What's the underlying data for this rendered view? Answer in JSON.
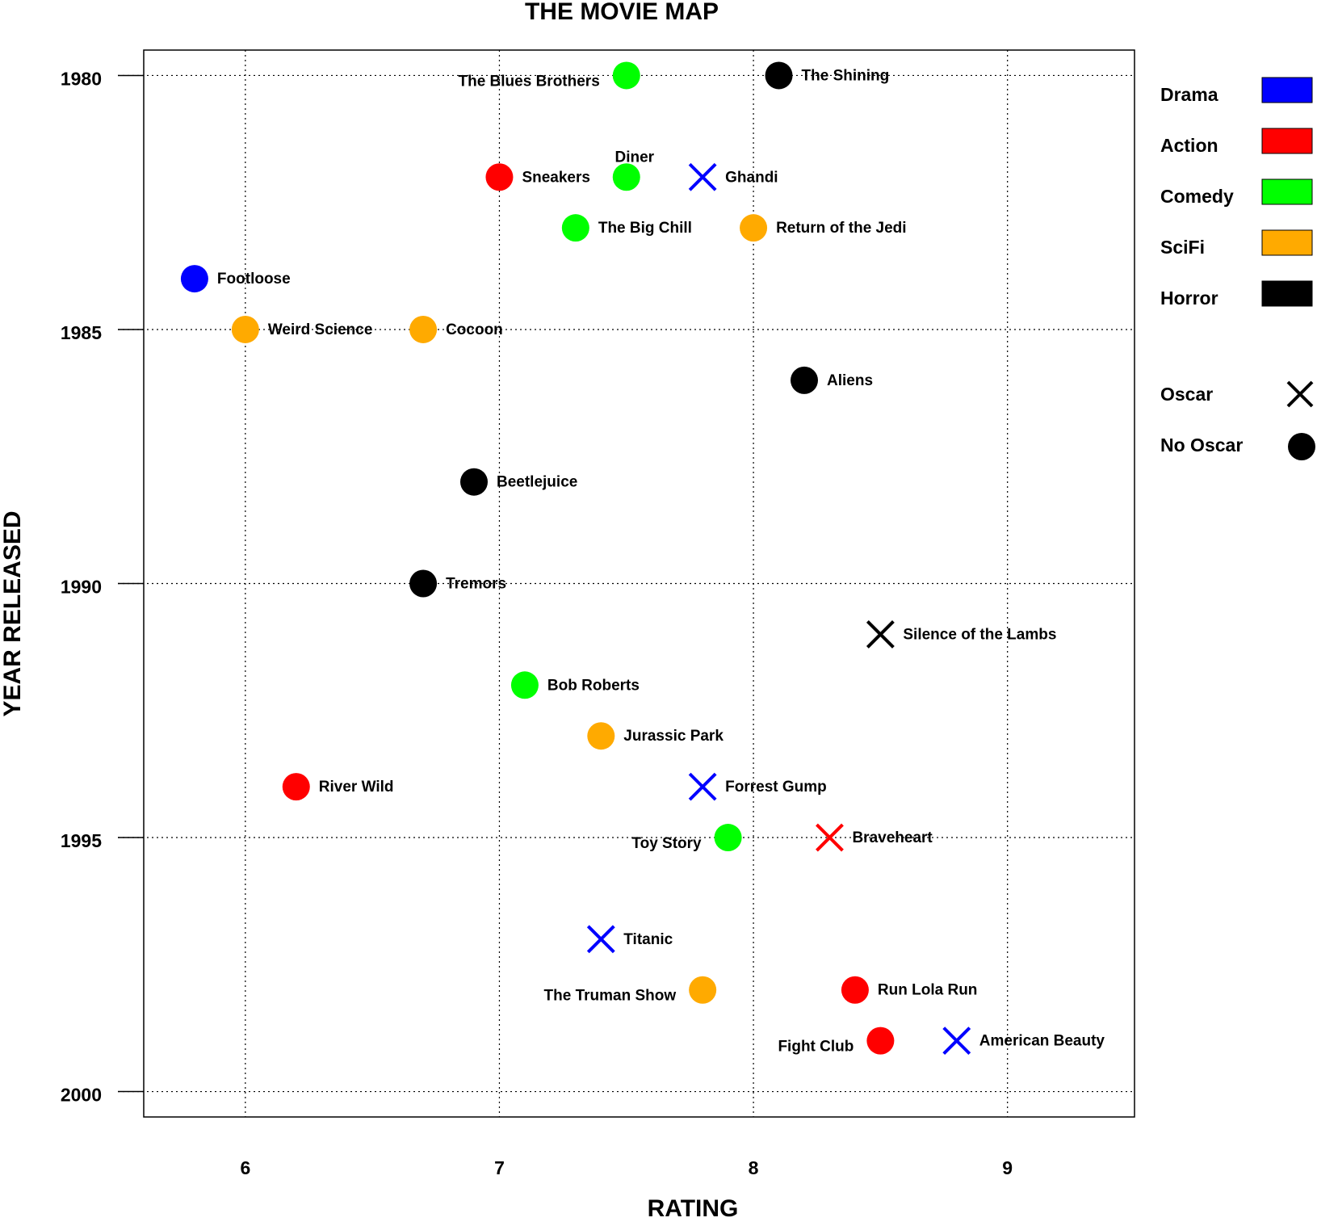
{
  "chart_data": {
    "type": "scatter",
    "title": "THE MOVIE MAP",
    "xlabel": "RATING",
    "ylabel": "YEAR RELEASED",
    "xlim": [
      5.6,
      9.5
    ],
    "ylim": [
      2000.5,
      1979.5
    ],
    "y_axis_inverted": true,
    "xticks": [
      6,
      7,
      8,
      9
    ],
    "xtick_labels": [
      "6",
      "7",
      "8",
      "9"
    ],
    "yticks": [
      1980,
      1985,
      1990,
      1995,
      2000
    ],
    "ytick_labels": [
      "1980",
      "1985",
      "1990",
      "1995",
      "2000"
    ],
    "grid": "dotted, at major ticks",
    "legend_position": "right, outside plot",
    "genres": [
      {
        "name": "Drama",
        "color": "#0000ff"
      },
      {
        "name": "Action",
        "color": "#ff0000"
      },
      {
        "name": "Comedy",
        "color": "#00ff00"
      },
      {
        "name": "SciFi",
        "color": "#ffaa00"
      },
      {
        "name": "Horror",
        "color": "#000000"
      }
    ],
    "markers": [
      {
        "name": "Oscar",
        "shape": "cross"
      },
      {
        "name": "No Oscar",
        "shape": "circle"
      }
    ],
    "points": [
      {
        "title": "The Blues Brothers",
        "rating": 7.5,
        "year": 1980,
        "genre": "Comedy",
        "oscar": false,
        "label_side": "left"
      },
      {
        "title": "The Shining",
        "rating": 8.1,
        "year": 1980,
        "genre": "Horror",
        "oscar": false,
        "label_side": "right"
      },
      {
        "title": "Sneakers",
        "rating": 7.0,
        "year": 1982,
        "genre": "Action",
        "oscar": false,
        "label_side": "right"
      },
      {
        "title": "Diner",
        "rating": 7.5,
        "year": 1982,
        "genre": "Comedy",
        "oscar": false,
        "label_side": "above"
      },
      {
        "title": "Ghandi",
        "rating": 7.8,
        "year": 1982,
        "genre": "Drama",
        "oscar": true,
        "label_side": "right"
      },
      {
        "title": "The Big Chill",
        "rating": 7.3,
        "year": 1983,
        "genre": "Comedy",
        "oscar": false,
        "label_side": "right"
      },
      {
        "title": "Return of the Jedi",
        "rating": 8.0,
        "year": 1983,
        "genre": "SciFi",
        "oscar": false,
        "label_side": "right"
      },
      {
        "title": "Footloose",
        "rating": 5.8,
        "year": 1984,
        "genre": "Drama",
        "oscar": false,
        "label_side": "right"
      },
      {
        "title": "Weird Science",
        "rating": 6.0,
        "year": 1985,
        "genre": "SciFi",
        "oscar": false,
        "label_side": "right"
      },
      {
        "title": "Cocoon",
        "rating": 6.7,
        "year": 1985,
        "genre": "SciFi",
        "oscar": false,
        "label_side": "right"
      },
      {
        "title": "Aliens",
        "rating": 8.2,
        "year": 1986,
        "genre": "Horror",
        "oscar": false,
        "label_side": "right"
      },
      {
        "title": "Beetlejuice",
        "rating": 6.9,
        "year": 1988,
        "genre": "Horror",
        "oscar": false,
        "label_side": "right"
      },
      {
        "title": "Tremors",
        "rating": 6.7,
        "year": 1990,
        "genre": "Horror",
        "oscar": false,
        "label_side": "right"
      },
      {
        "title": "Silence of the Lambs",
        "rating": 8.5,
        "year": 1991,
        "genre": "Horror",
        "oscar": true,
        "label_side": "right"
      },
      {
        "title": "Bob Roberts",
        "rating": 7.1,
        "year": 1992,
        "genre": "Comedy",
        "oscar": false,
        "label_side": "right"
      },
      {
        "title": "Jurassic Park",
        "rating": 7.4,
        "year": 1993,
        "genre": "SciFi",
        "oscar": false,
        "label_side": "right"
      },
      {
        "title": "River Wild",
        "rating": 6.2,
        "year": 1994,
        "genre": "Action",
        "oscar": false,
        "label_side": "right"
      },
      {
        "title": "Forrest Gump",
        "rating": 7.8,
        "year": 1994,
        "genre": "Drama",
        "oscar": true,
        "label_side": "right"
      },
      {
        "title": "Toy Story",
        "rating": 7.9,
        "year": 1995,
        "genre": "Comedy",
        "oscar": false,
        "label_side": "left"
      },
      {
        "title": "Braveheart",
        "rating": 8.3,
        "year": 1995,
        "genre": "Action",
        "oscar": true,
        "label_side": "right"
      },
      {
        "title": "Titanic",
        "rating": 7.4,
        "year": 1997,
        "genre": "Drama",
        "oscar": true,
        "label_side": "right"
      },
      {
        "title": "The Truman Show",
        "rating": 7.8,
        "year": 1998,
        "genre": "SciFi",
        "oscar": false,
        "label_side": "left"
      },
      {
        "title": "Run Lola Run",
        "rating": 8.4,
        "year": 1998,
        "genre": "Action",
        "oscar": false,
        "label_side": "right"
      },
      {
        "title": "Fight Club",
        "rating": 8.5,
        "year": 1999,
        "genre": "Action",
        "oscar": false,
        "label_side": "left"
      },
      {
        "title": "American Beauty",
        "rating": 8.8,
        "year": 1999,
        "genre": "Drama",
        "oscar": true,
        "label_side": "right"
      }
    ]
  }
}
